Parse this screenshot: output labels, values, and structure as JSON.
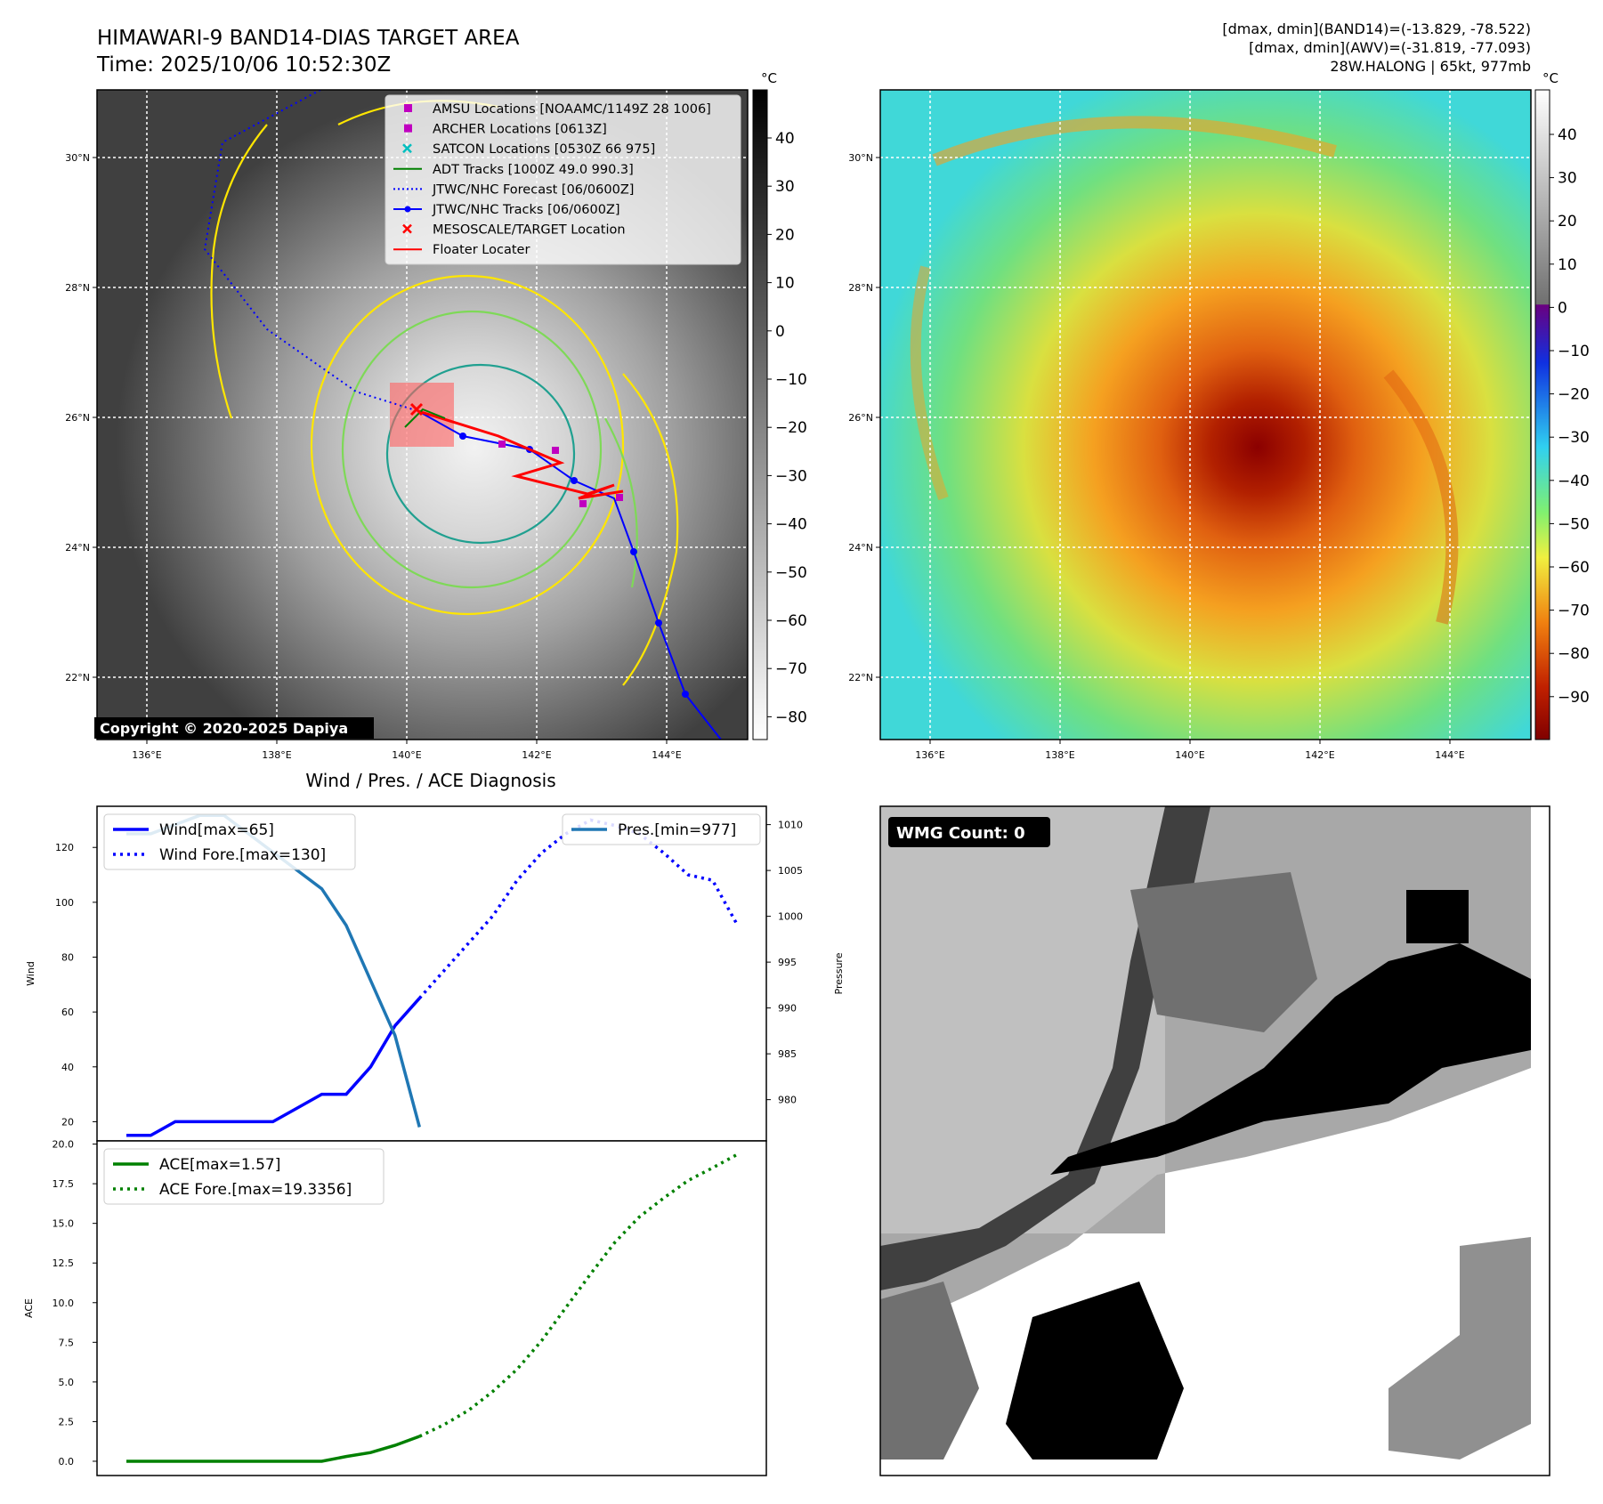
{
  "header": {
    "title_line1": "HIMAWARI-9 BAND14-DIAS TARGET AREA",
    "title_line2": "Time: 2025/10/06 10:52:30Z",
    "info_line1": "[dmax, dmin](BAND14)=(-13.829, -78.522)",
    "info_line2": "[dmax, dmin](AWV)=(-31.819, -77.093)",
    "info_line3": "28W.HALONG | 65kt, 977mb"
  },
  "colors": {
    "wind": "#0000ff",
    "pressure": "#1f77b4",
    "ace": "#008000",
    "track_obs": "#0000ff",
    "floater": "#ff0000",
    "amsu": "#c000c0",
    "satcon": "#00bfbf",
    "adt": "#008000",
    "contour_yellow": "#ffe600",
    "contour_green": "#7ed957",
    "contour_teal": "#20a090"
  },
  "maps": {
    "lon_ticks": [
      "136°E",
      "138°E",
      "140°E",
      "142°E",
      "144°E"
    ],
    "lat_ticks": [
      "30°N",
      "28°N",
      "26°N",
      "24°N",
      "22°N"
    ],
    "unit": "°C",
    "left_cbar_ticks": [
      "40",
      "30",
      "20",
      "10",
      "0",
      "−10",
      "−20",
      "−30",
      "−40",
      "−50",
      "−60",
      "−70",
      "−80"
    ],
    "right_cbar_ticks": [
      "40",
      "30",
      "20",
      "10",
      "0",
      "−10",
      "−20",
      "−30",
      "−40",
      "−50",
      "−60",
      "−70",
      "−80",
      "−90"
    ],
    "copyright": "Copyright © 2020-2025 Dapiya",
    "legend": [
      {
        "label": "AMSU Locations [NOAAMC/1149Z 28 1006]",
        "icon": "square-marker"
      },
      {
        "label": "ARCHER Locations [0613Z]",
        "icon": "square-marker"
      },
      {
        "label": "SATCON Locations [0530Z 66 975]",
        "icon": "x-marker"
      },
      {
        "label": "ADT Tracks [1000Z 49.0 990.3]",
        "icon": "solid-line"
      },
      {
        "label": "JTWC/NHC Forecast [06/0600Z]",
        "icon": "dotted-line"
      },
      {
        "label": "JTWC/NHC Tracks [06/0600Z]",
        "icon": "line-dot"
      },
      {
        "label": "MESOSCALE/TARGET Location",
        "icon": "x-marker"
      },
      {
        "label": "Floater Locater",
        "icon": "solid-line"
      }
    ]
  },
  "diag": {
    "title": "Wind / Pres. / ACE Diagnosis",
    "wind_label": "Wind",
    "pressure_label": "Pressure",
    "ace_label": "ACE",
    "legend_wind": "Wind[max=65]",
    "legend_wind_fore": "Wind Fore.[max=130]",
    "legend_pres": "Pres.[min=977]",
    "legend_ace": "ACE[max=1.57]",
    "legend_ace_fore": "ACE Fore.[max=19.3356]",
    "wind_ticks": [
      "20",
      "40",
      "60",
      "80",
      "100",
      "120"
    ],
    "pres_ticks": [
      "980",
      "985",
      "990",
      "995",
      "1000",
      "1005",
      "1010"
    ],
    "ace_ticks": [
      "0.0",
      "2.5",
      "5.0",
      "7.5",
      "10.0",
      "12.5",
      "15.0",
      "17.5",
      "20.0"
    ]
  },
  "wmg": {
    "label": "WMG Count: 0"
  },
  "chart_data": [
    {
      "type": "line",
      "title": "Wind / Pres. / ACE Diagnosis",
      "xlabel": "",
      "ylabel": "Wind",
      "ylim": [
        13,
        135
      ],
      "y2label": "Pressure",
      "y2lim": [
        975.5,
        1012
      ],
      "series": [
        {
          "name": "Wind[max=65]",
          "style": "solid",
          "axis": "left",
          "x": [
            0,
            1,
            2,
            3,
            4,
            5,
            6,
            7,
            8,
            9,
            10,
            11,
            12
          ],
          "y": [
            15,
            15,
            20,
            20,
            20,
            20,
            20,
            25,
            30,
            30,
            40,
            55,
            65
          ]
        },
        {
          "name": "Wind Fore.[max=130]",
          "style": "dotted",
          "axis": "left",
          "x": [
            12,
            13,
            14,
            15,
            16,
            17,
            18,
            19,
            20,
            21,
            22,
            23,
            24,
            25
          ],
          "y": [
            65,
            75,
            85,
            95,
            108,
            118,
            125,
            130,
            128,
            125,
            118,
            110,
            108,
            92
          ]
        },
        {
          "name": "Pres.[min=977]",
          "style": "solid",
          "axis": "right",
          "x": [
            0,
            1,
            2,
            3,
            4,
            5,
            6,
            7,
            8,
            9,
            10,
            11,
            12
          ],
          "y": [
            1009,
            1009,
            1010,
            1011,
            1011,
            1009,
            1007,
            1005,
            1003,
            999,
            993,
            987,
            977
          ]
        }
      ]
    },
    {
      "type": "line",
      "xlabel": "",
      "ylabel": "ACE",
      "ylim": [
        -0.9,
        20.2
      ],
      "series": [
        {
          "name": "ACE[max=1.57]",
          "style": "solid",
          "x": [
            0,
            1,
            2,
            3,
            4,
            5,
            6,
            7,
            8,
            9,
            10,
            11,
            12
          ],
          "y": [
            0,
            0,
            0,
            0,
            0,
            0,
            0,
            0,
            0,
            0.3,
            0.55,
            1.0,
            1.57
          ]
        },
        {
          "name": "ACE Fore.[max=19.3356]",
          "style": "dotted",
          "x": [
            12,
            13,
            14,
            15,
            16,
            17,
            18,
            19,
            20,
            21,
            22,
            23,
            24,
            25
          ],
          "y": [
            1.57,
            2.3,
            3.2,
            4.4,
            5.8,
            7.6,
            9.7,
            11.8,
            13.8,
            15.4,
            16.6,
            17.7,
            18.5,
            19.3356
          ]
        }
      ]
    }
  ]
}
